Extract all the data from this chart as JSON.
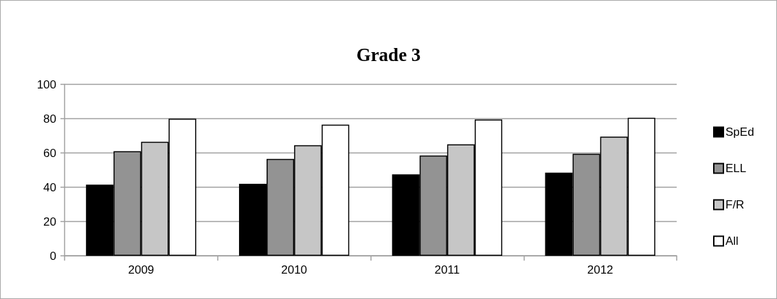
{
  "chart_data": {
    "type": "bar",
    "title": "Grade 3",
    "categories": [
      "2009",
      "2010",
      "2011",
      "2012"
    ],
    "series": [
      {
        "name": "SpEd",
        "color": "#000000",
        "values": [
          41.5,
          42,
          47.5,
          48.5
        ]
      },
      {
        "name": "ELL",
        "color": "#939393",
        "values": [
          61,
          56.5,
          58.5,
          59.5
        ]
      },
      {
        "name": "F/R",
        "color": "#c6c6c6",
        "values": [
          66.5,
          64.5,
          65,
          69.5
        ]
      },
      {
        "name": "All",
        "color": "#ffffff",
        "values": [
          80,
          76.5,
          79.5,
          80.5
        ]
      }
    ],
    "ylim": [
      0,
      100
    ],
    "yticks": [
      0,
      20,
      40,
      60,
      80,
      100
    ],
    "grid": "y",
    "legend": "right"
  }
}
